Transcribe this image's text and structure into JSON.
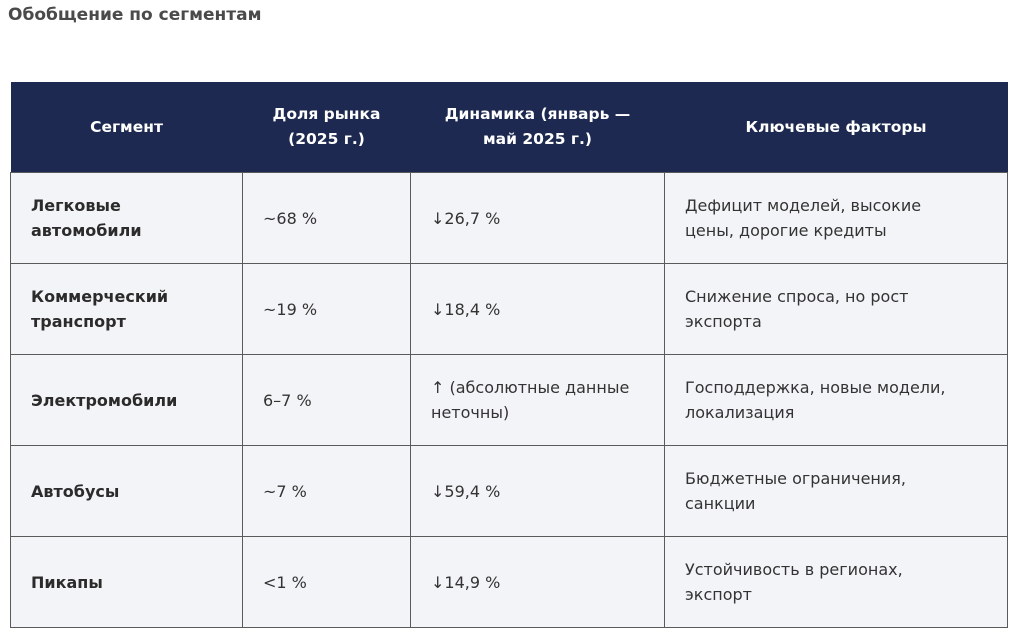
{
  "header": {
    "title": "Обобщение по сегментам"
  },
  "table": {
    "columns": [
      "Сегмент",
      "Доля рынка (2025 г.)",
      "Динамика (январь — май 2025 г.)",
      "Ключевые факторы"
    ],
    "rows": [
      [
        "Легковые автомобили",
        "~68 %",
        "↓26,7 %",
        "Дефицит моделей, высокие цены, дорогие кредиты"
      ],
      [
        "Коммерческий транспорт",
        "~19 %",
        "↓18,4 %",
        "Снижение спроса, но рост экспорта"
      ],
      [
        "Электромобили",
        "6–7 %",
        "↑ (абсолютные данные неточны)",
        "Господдержка, новые модели, локализация"
      ],
      [
        "Автобусы",
        "~7 %",
        "↓59,4 %",
        "Бюджетные ограничения, санкции"
      ],
      [
        "Пикапы",
        "<1 %",
        "↓14,9 %",
        "Устойчивость в регионах, экспорт"
      ]
    ]
  }
}
